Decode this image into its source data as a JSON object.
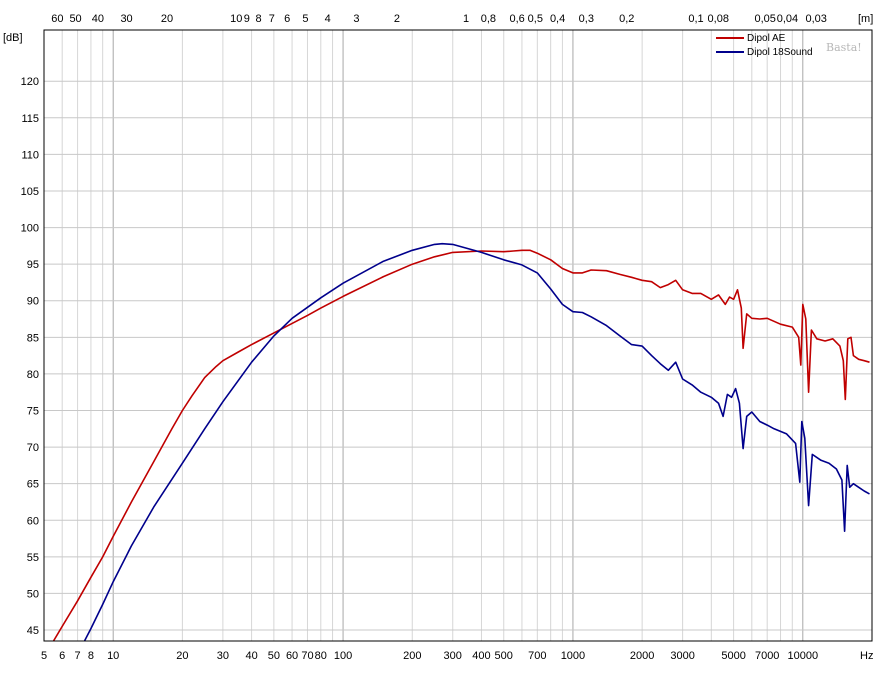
{
  "chart_data": {
    "type": "line",
    "x_scale": "log",
    "xlim": [
      5,
      20000
    ],
    "ylim": [
      43.5,
      127
    ],
    "xlabel": "Hz",
    "ylabel": "[dB]",
    "top_axis_label": "[m]",
    "grid": true,
    "legend_position": "top-right",
    "watermark": "Basta!",
    "x_ticks": [
      {
        "value": 5,
        "label": "5"
      },
      {
        "value": 6,
        "label": "6"
      },
      {
        "value": 7,
        "label": "7"
      },
      {
        "value": 8,
        "label": "8"
      },
      {
        "value": 10,
        "label": "10"
      },
      {
        "value": 20,
        "label": "20"
      },
      {
        "value": 30,
        "label": "30"
      },
      {
        "value": 40,
        "label": "40"
      },
      {
        "value": 50,
        "label": "50"
      },
      {
        "value": 60,
        "label": "60"
      },
      {
        "value": 70,
        "label": "70"
      },
      {
        "value": 80,
        "label": "80"
      },
      {
        "value": 100,
        "label": "100"
      },
      {
        "value": 200,
        "label": "200"
      },
      {
        "value": 300,
        "label": "300"
      },
      {
        "value": 400,
        "label": "400"
      },
      {
        "value": 500,
        "label": "500"
      },
      {
        "value": 700,
        "label": "700"
      },
      {
        "value": 1000,
        "label": "1000"
      },
      {
        "value": 2000,
        "label": "2000"
      },
      {
        "value": 3000,
        "label": "3000"
      },
      {
        "value": 5000,
        "label": "5000"
      },
      {
        "value": 7000,
        "label": "7000"
      },
      {
        "value": 10000,
        "label": "10000"
      }
    ],
    "top_ticks": [
      {
        "value": 60,
        "label": "60"
      },
      {
        "value": 50,
        "label": "50"
      },
      {
        "value": 40,
        "label": "40"
      },
      {
        "value": 30,
        "label": "30"
      },
      {
        "value": 20,
        "label": "20"
      },
      {
        "value": 10,
        "label": "10"
      },
      {
        "value": 9,
        "label": "9"
      },
      {
        "value": 8,
        "label": "8"
      },
      {
        "value": 7,
        "label": "7"
      },
      {
        "value": 6,
        "label": "6"
      },
      {
        "value": 5,
        "label": "5"
      },
      {
        "value": 4,
        "label": "4"
      },
      {
        "value": 3,
        "label": "3"
      },
      {
        "value": 2,
        "label": "2"
      },
      {
        "value": 1,
        "label": "1"
      },
      {
        "value": 0.8,
        "label": "0,8"
      },
      {
        "value": 0.6,
        "label": "0,6"
      },
      {
        "value": 0.5,
        "label": "0,5"
      },
      {
        "value": 0.4,
        "label": "0,4"
      },
      {
        "value": 0.3,
        "label": "0,3"
      },
      {
        "value": 0.2,
        "label": "0,2"
      },
      {
        "value": 0.1,
        "label": "0,1"
      },
      {
        "value": 0.08,
        "label": "0,08"
      },
      {
        "value": 0.05,
        "label": "0,05"
      },
      {
        "value": 0.04,
        "label": "0,04"
      },
      {
        "value": 0.03,
        "label": "0,03"
      }
    ],
    "y_ticks": [
      45,
      50,
      55,
      60,
      65,
      70,
      75,
      80,
      85,
      90,
      95,
      100,
      105,
      110,
      115,
      120
    ],
    "series": [
      {
        "name": "Dipol AE",
        "color": "#c00000",
        "points": [
          [
            5.5,
            43.5
          ],
          [
            6,
            45.5
          ],
          [
            7,
            49
          ],
          [
            8,
            52.2
          ],
          [
            9,
            55
          ],
          [
            10,
            57.8
          ],
          [
            12,
            62.5
          ],
          [
            15,
            68
          ],
          [
            18,
            72.5
          ],
          [
            20,
            75
          ],
          [
            22,
            77
          ],
          [
            25,
            79.5
          ],
          [
            28,
            81
          ],
          [
            30,
            81.8
          ],
          [
            35,
            83
          ],
          [
            40,
            84
          ],
          [
            50,
            85.6
          ],
          [
            60,
            86.9
          ],
          [
            70,
            88
          ],
          [
            80,
            89
          ],
          [
            100,
            90.6
          ],
          [
            150,
            93.3
          ],
          [
            200,
            95
          ],
          [
            250,
            96
          ],
          [
            300,
            96.6
          ],
          [
            400,
            96.8
          ],
          [
            500,
            96.7
          ],
          [
            550,
            96.8
          ],
          [
            600,
            96.9
          ],
          [
            650,
            96.9
          ],
          [
            700,
            96.5
          ],
          [
            800,
            95.6
          ],
          [
            900,
            94.4
          ],
          [
            1000,
            93.8
          ],
          [
            1100,
            93.8
          ],
          [
            1200,
            94.2
          ],
          [
            1400,
            94.1
          ],
          [
            1600,
            93.6
          ],
          [
            1800,
            93.2
          ],
          [
            2000,
            92.8
          ],
          [
            2200,
            92.6
          ],
          [
            2400,
            91.8
          ],
          [
            2600,
            92.2
          ],
          [
            2800,
            92.8
          ],
          [
            3000,
            91.5
          ],
          [
            3300,
            91
          ],
          [
            3600,
            91
          ],
          [
            4000,
            90.2
          ],
          [
            4300,
            90.8
          ],
          [
            4600,
            89.5
          ],
          [
            4800,
            90.5
          ],
          [
            5000,
            90.2
          ],
          [
            5200,
            91.5
          ],
          [
            5400,
            89
          ],
          [
            5500,
            83.5
          ],
          [
            5700,
            88.2
          ],
          [
            6000,
            87.6
          ],
          [
            6500,
            87.5
          ],
          [
            7000,
            87.6
          ],
          [
            8000,
            86.8
          ],
          [
            9000,
            86.4
          ],
          [
            9600,
            85
          ],
          [
            9800,
            81.2
          ],
          [
            10000,
            89.5
          ],
          [
            10300,
            87.5
          ],
          [
            10600,
            77.5
          ],
          [
            10900,
            86
          ],
          [
            11500,
            84.8
          ],
          [
            12500,
            84.5
          ],
          [
            13500,
            84.8
          ],
          [
            14500,
            83.8
          ],
          [
            15000,
            81.8
          ],
          [
            15300,
            76.5
          ],
          [
            15700,
            84.8
          ],
          [
            16200,
            85
          ],
          [
            16600,
            82.5
          ],
          [
            17500,
            82
          ],
          [
            18500,
            81.8
          ],
          [
            19500,
            81.6
          ]
        ]
      },
      {
        "name": "Dipol 18Sound",
        "color": "#00008c",
        "points": [
          [
            7.5,
            43.5
          ],
          [
            8,
            45.2
          ],
          [
            9,
            48.5
          ],
          [
            10,
            51.6
          ],
          [
            12,
            56.5
          ],
          [
            15,
            61.8
          ],
          [
            20,
            67.8
          ],
          [
            25,
            72.5
          ],
          [
            30,
            76.2
          ],
          [
            40,
            81.6
          ],
          [
            50,
            85.2
          ],
          [
            60,
            87.6
          ],
          [
            70,
            89.1
          ],
          [
            80,
            90.4
          ],
          [
            100,
            92.4
          ],
          [
            150,
            95.4
          ],
          [
            200,
            96.9
          ],
          [
            250,
            97.7
          ],
          [
            270,
            97.8
          ],
          [
            300,
            97.7
          ],
          [
            400,
            96.6
          ],
          [
            500,
            95.6
          ],
          [
            600,
            94.9
          ],
          [
            700,
            93.8
          ],
          [
            800,
            91.6
          ],
          [
            900,
            89.5
          ],
          [
            1000,
            88.5
          ],
          [
            1100,
            88.4
          ],
          [
            1200,
            87.8
          ],
          [
            1400,
            86.6
          ],
          [
            1600,
            85.2
          ],
          [
            1800,
            84
          ],
          [
            2000,
            83.8
          ],
          [
            2200,
            82.5
          ],
          [
            2400,
            81.4
          ],
          [
            2600,
            80.5
          ],
          [
            2800,
            81.6
          ],
          [
            3000,
            79.3
          ],
          [
            3300,
            78.5
          ],
          [
            3600,
            77.5
          ],
          [
            4000,
            76.8
          ],
          [
            4300,
            76
          ],
          [
            4500,
            74.2
          ],
          [
            4700,
            77.2
          ],
          [
            4900,
            76.8
          ],
          [
            5100,
            78
          ],
          [
            5300,
            76
          ],
          [
            5500,
            69.8
          ],
          [
            5700,
            74.2
          ],
          [
            6000,
            74.8
          ],
          [
            6500,
            73.5
          ],
          [
            7000,
            73
          ],
          [
            7500,
            72.5
          ],
          [
            8500,
            71.8
          ],
          [
            9300,
            70.5
          ],
          [
            9700,
            65.2
          ],
          [
            9900,
            73.5
          ],
          [
            10200,
            71.2
          ],
          [
            10600,
            62
          ],
          [
            11000,
            69
          ],
          [
            12000,
            68.2
          ],
          [
            13000,
            67.8
          ],
          [
            14000,
            67
          ],
          [
            14800,
            65.5
          ],
          [
            15200,
            58.5
          ],
          [
            15600,
            67.5
          ],
          [
            16000,
            64.5
          ],
          [
            16600,
            65
          ],
          [
            17500,
            64.5
          ],
          [
            18500,
            64
          ],
          [
            19500,
            63.6
          ]
        ]
      }
    ]
  }
}
